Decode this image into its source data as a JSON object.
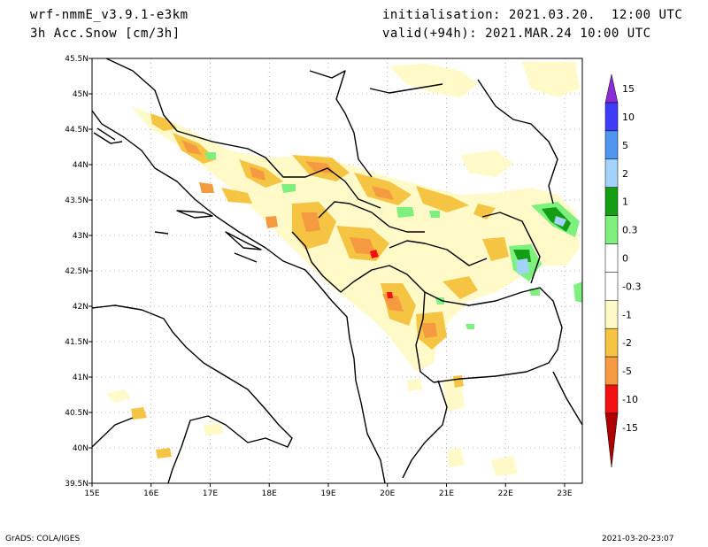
{
  "header": {
    "model": "wrf-nmmE_v3.9.1-e3km",
    "variable": "3h Acc.Snow [cm/3h]",
    "init": "initialisation: 2021.03.20.  12:00 UTC",
    "valid": "valid(+94h): 2021.MAR.24 10:00 UTC"
  },
  "footer": {
    "credit": "GrADS: COLA/IGES",
    "timestamp": "2021-03-20-23:07"
  },
  "map": {
    "lat_labels": [
      "45.5N",
      "45N",
      "44.5N",
      "44N",
      "43.5N",
      "43N",
      "42.5N",
      "42N",
      "41.5N",
      "41N",
      "40.5N",
      "40N",
      "39.5N"
    ],
    "lon_labels": [
      "15E",
      "16E",
      "17E",
      "18E",
      "19E",
      "20E",
      "21E",
      "22E",
      "23E"
    ],
    "grid": true
  },
  "colorbar": {
    "labels": [
      "15",
      "10",
      "5",
      "2",
      "1",
      "0.3",
      "0",
      "-0.3",
      "-1",
      "-2",
      "-5",
      "-10",
      "-15"
    ],
    "colors": [
      "#8b2bd6",
      "#3d3df5",
      "#4f96f0",
      "#a3d3fa",
      "#139e13",
      "#7ef07e",
      "#ffffff",
      "#ffffff",
      "#fffac8",
      "#f5c443",
      "#f69a42",
      "#f21010",
      "#ad0000"
    ]
  }
}
